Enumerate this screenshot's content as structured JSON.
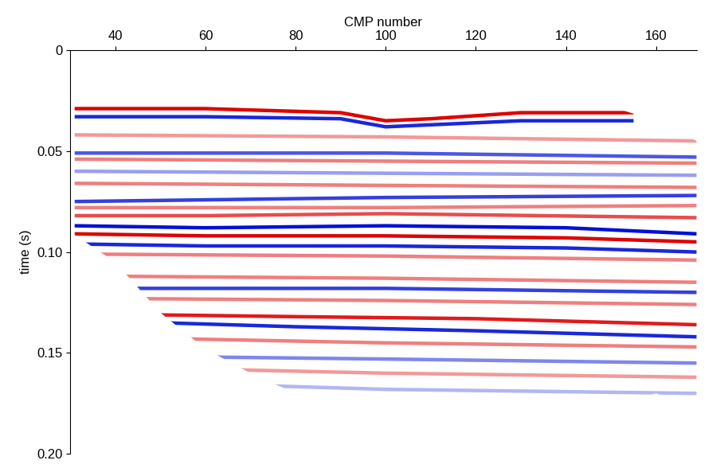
{
  "chart_data": {
    "type": "seismic",
    "x_label": "CMP number",
    "y_label": "time (s)",
    "xlim": [
      30,
      169
    ],
    "xticks": [
      40,
      60,
      80,
      100,
      120,
      140,
      160
    ],
    "ylim": [
      0.2,
      0
    ],
    "yticks": [
      0,
      0.05,
      {
        "value": 0.1,
        "label": "0.10"
      },
      0.15,
      {
        "value": 0.2,
        "label": "0.20"
      }
    ],
    "mute_top": {
      "cmp": [
        30,
        60,
        100,
        140,
        150,
        160,
        169
      ],
      "time": [
        0.025,
        0.025,
        0.026,
        0.026,
        0.028,
        0.035,
        0.045
      ]
    },
    "mute_bottom": {
      "cmp": [
        30,
        40,
        50,
        60,
        70,
        80,
        90,
        100,
        120,
        140,
        160,
        169
      ],
      "time": [
        0.09,
        0.105,
        0.13,
        0.148,
        0.16,
        0.17,
        0.18,
        0.176,
        0.18,
        0.182,
        0.17,
        0.178
      ]
    },
    "horizons": [
      {
        "color": "#e00000",
        "amplitude": 1.0,
        "cmp": [
          31,
          60,
          90,
          100,
          110,
          130,
          155
        ],
        "time": [
          0.029,
          0.029,
          0.031,
          0.035,
          0.034,
          0.031,
          0.031
        ]
      },
      {
        "color": "#0010d8",
        "amplitude": 0.9,
        "cmp": [
          31,
          60,
          90,
          100,
          110,
          130,
          155
        ],
        "time": [
          0.033,
          0.033,
          0.034,
          0.038,
          0.037,
          0.035,
          0.035
        ]
      },
      {
        "color": "#e00000",
        "amplitude": 0.4,
        "cmp": [
          31,
          100,
          169
        ],
        "time": [
          0.042,
          0.043,
          0.045
        ]
      },
      {
        "color": "#0010d8",
        "amplitude": 0.7,
        "cmp": [
          31,
          100,
          169
        ],
        "time": [
          0.051,
          0.051,
          0.053
        ]
      },
      {
        "color": "#e00000",
        "amplitude": 0.5,
        "cmp": [
          31,
          100,
          169
        ],
        "time": [
          0.054,
          0.055,
          0.056
        ]
      },
      {
        "color": "#0010d8",
        "amplitude": 0.4,
        "cmp": [
          31,
          100,
          169
        ],
        "time": [
          0.06,
          0.061,
          0.062
        ]
      },
      {
        "color": "#e00000",
        "amplitude": 0.5,
        "cmp": [
          31,
          100,
          169
        ],
        "time": [
          0.066,
          0.067,
          0.068
        ]
      },
      {
        "color": "#0010d8",
        "amplitude": 0.8,
        "cmp": [
          31,
          100,
          169
        ],
        "time": [
          0.075,
          0.073,
          0.072
        ]
      },
      {
        "color": "#e00000",
        "amplitude": 0.5,
        "cmp": [
          31,
          100,
          169
        ],
        "time": [
          0.078,
          0.078,
          0.077
        ]
      },
      {
        "color": "#e00000",
        "amplitude": 0.7,
        "cmp": [
          31,
          60,
          100,
          169
        ],
        "time": [
          0.082,
          0.082,
          0.081,
          0.083
        ]
      },
      {
        "color": "#0010d8",
        "amplitude": 1.0,
        "cmp": [
          31,
          60,
          100,
          140,
          169
        ],
        "time": [
          0.087,
          0.088,
          0.087,
          0.088,
          0.091
        ]
      },
      {
        "color": "#e00000",
        "amplitude": 1.0,
        "cmp": [
          31,
          60,
          100,
          140,
          169
        ],
        "time": [
          0.091,
          0.092,
          0.092,
          0.093,
          0.095
        ]
      },
      {
        "color": "#0010d8",
        "amplitude": 0.9,
        "cmp": [
          31,
          60,
          100,
          140,
          169
        ],
        "time": [
          0.096,
          0.097,
          0.097,
          0.098,
          0.1
        ]
      },
      {
        "color": "#e00000",
        "amplitude": 0.5,
        "cmp": [
          31,
          100,
          169
        ],
        "time": [
          0.101,
          0.102,
          0.104
        ]
      },
      {
        "color": "#e00000",
        "amplitude": 0.5,
        "cmp": [
          40,
          100,
          169
        ],
        "time": [
          0.112,
          0.113,
          0.115
        ]
      },
      {
        "color": "#0010d8",
        "amplitude": 0.8,
        "cmp": [
          40,
          100,
          169
        ],
        "time": [
          0.118,
          0.118,
          0.12
        ]
      },
      {
        "color": "#e00000",
        "amplitude": 0.5,
        "cmp": [
          40,
          100,
          169
        ],
        "time": [
          0.123,
          0.124,
          0.126
        ]
      },
      {
        "color": "#e00000",
        "amplitude": 0.9,
        "cmp": [
          45,
          80,
          120,
          169
        ],
        "time": [
          0.131,
          0.132,
          0.133,
          0.136
        ]
      },
      {
        "color": "#0010d8",
        "amplitude": 0.9,
        "cmp": [
          50,
          80,
          120,
          169
        ],
        "time": [
          0.135,
          0.137,
          0.139,
          0.142
        ]
      },
      {
        "color": "#e00000",
        "amplitude": 0.5,
        "cmp": [
          55,
          100,
          169
        ],
        "time": [
          0.143,
          0.145,
          0.147
        ]
      },
      {
        "color": "#0010d8",
        "amplitude": 0.5,
        "cmp": [
          60,
          100,
          169
        ],
        "time": [
          0.152,
          0.153,
          0.155
        ]
      },
      {
        "color": "#e00000",
        "amplitude": 0.4,
        "cmp": [
          60,
          100,
          169
        ],
        "time": [
          0.158,
          0.16,
          0.162
        ]
      },
      {
        "color": "#0010d8",
        "amplitude": 0.3,
        "cmp": [
          70,
          100,
          169
        ],
        "time": [
          0.166,
          0.168,
          0.17
        ]
      }
    ]
  }
}
